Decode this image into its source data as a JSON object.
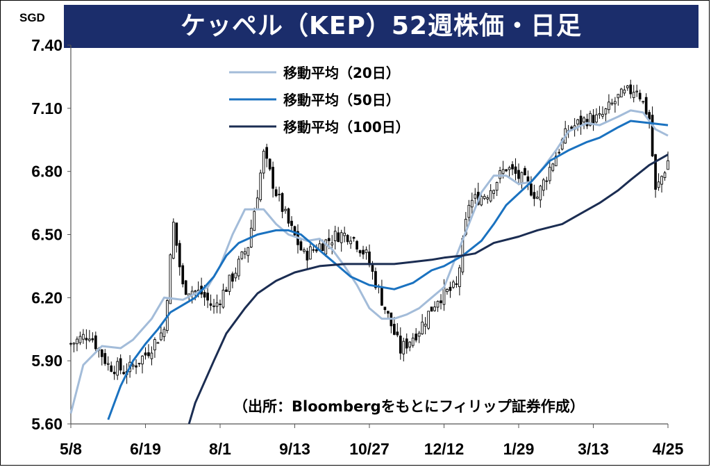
{
  "chart_data": {
    "type": "candlestick",
    "title": "ケッペル（KEP）52週株価・日足",
    "unit": "SGD",
    "ylim": [
      5.6,
      7.4
    ],
    "y_ticks": [
      "5.60",
      "5.90",
      "6.20",
      "6.50",
      "6.80",
      "7.10",
      "7.40"
    ],
    "x_ticks": [
      "5/8",
      "6/19",
      "8/1",
      "9/13",
      "10/27",
      "12/12",
      "1/29",
      "3/13",
      "4/25"
    ],
    "source": "（出所：Bloombergをもとにフィリップ証券作成）",
    "legend_position": "top-center",
    "close_trend": [
      [
        0,
        5.98
      ],
      [
        6,
        6.03
      ],
      [
        12,
        5.88
      ],
      [
        18,
        5.85
      ],
      [
        24,
        5.93
      ],
      [
        30,
        6.05
      ],
      [
        33,
        6.55
      ],
      [
        36,
        6.25
      ],
      [
        42,
        6.22
      ],
      [
        46,
        6.15
      ],
      [
        52,
        6.3
      ],
      [
        57,
        6.45
      ],
      [
        60,
        6.7
      ],
      [
        62,
        6.88
      ],
      [
        66,
        6.7
      ],
      [
        70,
        6.55
      ],
      [
        75,
        6.4
      ],
      [
        80,
        6.45
      ],
      [
        86,
        6.5
      ],
      [
        90,
        6.5
      ],
      [
        95,
        6.4
      ],
      [
        101,
        6.15
      ],
      [
        106,
        5.95
      ],
      [
        112,
        6.05
      ],
      [
        118,
        6.2
      ],
      [
        124,
        6.25
      ],
      [
        128,
        6.65
      ],
      [
        134,
        6.7
      ],
      [
        140,
        6.82
      ],
      [
        146,
        6.75
      ],
      [
        150,
        6.68
      ],
      [
        155,
        6.85
      ],
      [
        160,
        7.0
      ],
      [
        166,
        7.05
      ],
      [
        170,
        7.05
      ],
      [
        176,
        7.15
      ],
      [
        182,
        7.2
      ],
      [
        186,
        7.05
      ],
      [
        188,
        6.7
      ],
      [
        192,
        6.85
      ]
    ],
    "series": [
      {
        "name": "移動平均（20日）",
        "color": "#a3bcd9",
        "values": [
          [
            0,
            5.65
          ],
          [
            4,
            5.88
          ],
          [
            10,
            5.97
          ],
          [
            16,
            5.96
          ],
          [
            20,
            6.0
          ],
          [
            26,
            6.1
          ],
          [
            30,
            6.2
          ],
          [
            36,
            6.19
          ],
          [
            40,
            6.22
          ],
          [
            44,
            6.25
          ],
          [
            48,
            6.35
          ],
          [
            52,
            6.5
          ],
          [
            56,
            6.62
          ],
          [
            62,
            6.62
          ],
          [
            66,
            6.55
          ],
          [
            70,
            6.5
          ],
          [
            76,
            6.47
          ],
          [
            80,
            6.48
          ],
          [
            84,
            6.43
          ],
          [
            88,
            6.35
          ],
          [
            92,
            6.26
          ],
          [
            96,
            6.15
          ],
          [
            100,
            6.1
          ],
          [
            104,
            6.1
          ],
          [
            108,
            6.12
          ],
          [
            112,
            6.15
          ],
          [
            116,
            6.2
          ],
          [
            120,
            6.25
          ],
          [
            124,
            6.4
          ],
          [
            128,
            6.55
          ],
          [
            132,
            6.7
          ],
          [
            136,
            6.78
          ],
          [
            140,
            6.78
          ],
          [
            144,
            6.74
          ],
          [
            148,
            6.75
          ],
          [
            152,
            6.82
          ],
          [
            156,
            6.9
          ],
          [
            160,
            6.99
          ],
          [
            166,
            7.03
          ],
          [
            170,
            7.02
          ],
          [
            176,
            7.06
          ],
          [
            180,
            7.09
          ],
          [
            184,
            7.08
          ],
          [
            188,
            7.0
          ],
          [
            192,
            6.97
          ]
        ]
      },
      {
        "name": "移動平均（50日）",
        "color": "#1a72c0",
        "values": [
          [
            12,
            5.62
          ],
          [
            16,
            5.78
          ],
          [
            20,
            5.9
          ],
          [
            24,
            5.98
          ],
          [
            28,
            6.05
          ],
          [
            32,
            6.13
          ],
          [
            40,
            6.2
          ],
          [
            46,
            6.3
          ],
          [
            50,
            6.4
          ],
          [
            54,
            6.46
          ],
          [
            60,
            6.5
          ],
          [
            66,
            6.52
          ],
          [
            70,
            6.52
          ],
          [
            74,
            6.5
          ],
          [
            78,
            6.45
          ],
          [
            82,
            6.4
          ],
          [
            86,
            6.35
          ],
          [
            90,
            6.3
          ],
          [
            96,
            6.26
          ],
          [
            100,
            6.25
          ],
          [
            104,
            6.24
          ],
          [
            110,
            6.27
          ],
          [
            116,
            6.33
          ],
          [
            120,
            6.35
          ],
          [
            126,
            6.4
          ],
          [
            132,
            6.47
          ],
          [
            136,
            6.55
          ],
          [
            140,
            6.64
          ],
          [
            148,
            6.75
          ],
          [
            154,
            6.85
          ],
          [
            160,
            6.9
          ],
          [
            166,
            6.94
          ],
          [
            170,
            6.96
          ],
          [
            176,
            7.01
          ],
          [
            180,
            7.04
          ],
          [
            186,
            7.03
          ],
          [
            192,
            7.02
          ]
        ]
      },
      {
        "name": "移動平均（100日）",
        "color": "#1b2d52",
        "values": [
          [
            38,
            5.6
          ],
          [
            40,
            5.7
          ],
          [
            46,
            5.9
          ],
          [
            50,
            6.03
          ],
          [
            56,
            6.15
          ],
          [
            60,
            6.22
          ],
          [
            66,
            6.28
          ],
          [
            72,
            6.32
          ],
          [
            80,
            6.35
          ],
          [
            88,
            6.36
          ],
          [
            96,
            6.36
          ],
          [
            104,
            6.36
          ],
          [
            110,
            6.37
          ],
          [
            116,
            6.38
          ],
          [
            120,
            6.39
          ],
          [
            126,
            6.4
          ],
          [
            130,
            6.41
          ],
          [
            136,
            6.46
          ],
          [
            144,
            6.49
          ],
          [
            150,
            6.52
          ],
          [
            158,
            6.55
          ],
          [
            164,
            6.6
          ],
          [
            170,
            6.65
          ],
          [
            176,
            6.71
          ],
          [
            180,
            6.76
          ],
          [
            186,
            6.83
          ],
          [
            192,
            6.88
          ]
        ]
      }
    ]
  }
}
